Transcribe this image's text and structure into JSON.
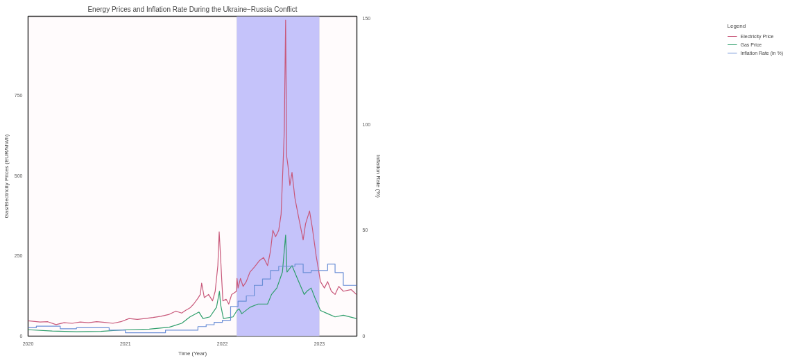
{
  "chart_data": {
    "type": "line",
    "title": "Energy Prices and Inflation Rate During the Ukraine−Russia Conflict",
    "xlabel": "Time (Year)",
    "ylabel": "Gas/Electricity Prices (EUR/MWh)",
    "y2label": "Inflation Rate (%)",
    "legend_title": "Legend",
    "legend": "right",
    "grid": false,
    "xlim": [
      "2020-01-01",
      "2023-05-22"
    ],
    "xticks": [
      {
        "value": "2020-01-01",
        "label": "2020"
      },
      {
        "value": "2021-01-01",
        "label": "2021"
      },
      {
        "value": "2022-01-01",
        "label": "2022"
      },
      {
        "value": "2023-01-01",
        "label": "2023"
      }
    ],
    "ylim": [
      0,
      997
    ],
    "yticks": [
      0,
      250,
      500,
      750
    ],
    "y2lim": [
      0,
      151
    ],
    "y2ticks": [
      0,
      50,
      100,
      150
    ],
    "bands": [
      {
        "axis": "x",
        "from": "2022-02-24",
        "to": "2023-01-01",
        "label": null,
        "color": "#c5c3fa"
      }
    ],
    "series": [
      {
        "name": "Electricity Price",
        "color": "#c8587a",
        "x": [
          "2020-01-01",
          "2020-02-15",
          "2020-03-15",
          "2020-04-15",
          "2020-05-15",
          "2020-06-15",
          "2020-07-15",
          "2020-08-15",
          "2020-09-15",
          "2020-10-15",
          "2020-11-15",
          "2020-12-15",
          "2021-01-15",
          "2021-02-15",
          "2021-03-15",
          "2021-04-15",
          "2021-05-15",
          "2021-06-15",
          "2021-07-10",
          "2021-08-01",
          "2021-08-15",
          "2021-09-01",
          "2021-09-15",
          "2021-10-01",
          "2021-10-10",
          "2021-10-15",
          "2021-10-25",
          "2021-11-10",
          "2021-11-25",
          "2021-12-05",
          "2021-12-15",
          "2021-12-20",
          "2021-12-25",
          "2021-12-30",
          "2022-01-03",
          "2022-01-15",
          "2022-01-25",
          "2022-02-05",
          "2022-02-15",
          "2022-02-23",
          "2022-02-25",
          "2022-03-01",
          "2022-03-10",
          "2022-03-20",
          "2022-04-01",
          "2022-04-15",
          "2022-05-01",
          "2022-05-20",
          "2022-06-05",
          "2022-06-20",
          "2022-07-01",
          "2022-07-10",
          "2022-07-20",
          "2022-08-01",
          "2022-08-10",
          "2022-08-18",
          "2022-08-22",
          "2022-08-27",
          "2022-08-31",
          "2022-09-05",
          "2022-09-12",
          "2022-09-20",
          "2022-10-01",
          "2022-10-15",
          "2022-11-01",
          "2022-11-10",
          "2022-11-25",
          "2022-12-05",
          "2022-12-20",
          "2023-01-05",
          "2023-01-20",
          "2023-02-01",
          "2023-02-15",
          "2023-03-01",
          "2023-03-15",
          "2023-04-01",
          "2023-05-01",
          "2023-05-20"
        ],
        "values": [
          48,
          44,
          45,
          36,
          42,
          40,
          44,
          42,
          45,
          43,
          40,
          45,
          55,
          52,
          55,
          58,
          62,
          68,
          78,
          72,
          80,
          88,
          100,
          118,
          130,
          165,
          120,
          130,
          110,
          140,
          220,
          325,
          250,
          170,
          110,
          115,
          100,
          130,
          135,
          140,
          180,
          150,
          180,
          155,
          170,
          200,
          215,
          235,
          245,
          220,
          265,
          330,
          310,
          330,
          380,
          550,
          640,
          985,
          560,
          530,
          470,
          510,
          430,
          370,
          300,
          350,
          390,
          340,
          250,
          170,
          150,
          170,
          140,
          130,
          155,
          140,
          145,
          130
        ]
      },
      {
        "name": "Gas Price",
        "color": "#2e9e6b",
        "x": [
          "2020-01-01",
          "2020-04-01",
          "2020-07-01",
          "2020-10-01",
          "2021-01-01",
          "2021-04-01",
          "2021-06-15",
          "2021-08-01",
          "2021-09-01",
          "2021-10-05",
          "2021-10-20",
          "2021-11-15",
          "2021-12-10",
          "2021-12-21",
          "2021-12-25",
          "2022-01-05",
          "2022-02-10",
          "2022-02-25",
          "2022-03-05",
          "2022-03-15",
          "2022-04-15",
          "2022-05-15",
          "2022-06-20",
          "2022-07-05",
          "2022-07-25",
          "2022-08-15",
          "2022-08-27",
          "2022-09-01",
          "2022-09-20",
          "2022-10-10",
          "2022-11-05",
          "2022-11-15",
          "2022-12-01",
          "2022-12-15",
          "2023-01-05",
          "2023-02-01",
          "2023-03-01",
          "2023-04-01",
          "2023-05-20"
        ],
        "values": [
          20,
          16,
          14,
          15,
          20,
          22,
          28,
          40,
          60,
          75,
          55,
          60,
          90,
          140,
          100,
          55,
          60,
          80,
          85,
          70,
          90,
          100,
          100,
          130,
          150,
          200,
          315,
          200,
          220,
          180,
          130,
          140,
          150,
          120,
          80,
          70,
          60,
          65,
          55
        ]
      },
      {
        "name": "Inflation Rate (in %)",
        "color": "#6b8fd6",
        "type": "step",
        "axis": "y2",
        "x": [
          "2020-01-01",
          "2020-02-01",
          "2020-05-01",
          "2020-07-01",
          "2020-11-01",
          "2021-01-01",
          "2021-06-01",
          "2021-10-01",
          "2021-11-01",
          "2021-12-01",
          "2022-01-01",
          "2022-02-01",
          "2022-03-01",
          "2022-04-01",
          "2022-05-01",
          "2022-06-01",
          "2022-07-01",
          "2022-08-01",
          "2022-10-01",
          "2022-11-01",
          "2022-12-01",
          "2023-02-01",
          "2023-03-01",
          "2023-04-01",
          "2023-05-22"
        ],
        "values": [
          4,
          4.7,
          3.5,
          4,
          2.8,
          1.6,
          2.8,
          4.5,
          5.4,
          6.5,
          7.5,
          14,
          16.5,
          19,
          24,
          27,
          31,
          33,
          34,
          30,
          31,
          34,
          30,
          24,
          24
        ]
      }
    ]
  }
}
